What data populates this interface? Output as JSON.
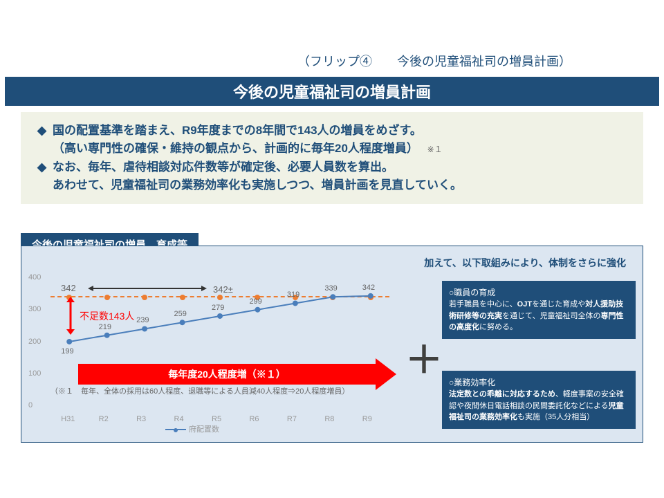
{
  "flip": "（フリップ④　　今後の児童福祉司の増員計画）",
  "title": "今後の児童福祉司の増員計画",
  "summary": {
    "l1": "国の配置基準を踏まえ、R9年度までの8年間で143人の増員をめざす。",
    "l2": "（高い専門性の確保・維持の観点から、計画的に毎年20人程度増員）",
    "l2note": "※１",
    "l3": "なお、毎年、虐待相談対応件数等が確定後、必要人員数を算出。",
    "l4": "あわせて、児童福祉司の業務効率化も実施しつつ、増員計画を見直していく。"
  },
  "section": "今後の児童福祉司の増員、育成等",
  "panelSub": "加えて、以下取組みにより、体制をさらに強化",
  "chart": {
    "target_line_value": 342,
    "top_left_label": "342",
    "top_right_label": "342±",
    "y": {
      "max": 400,
      "ticks": [
        0,
        100,
        200,
        300,
        400
      ]
    },
    "x_labels": [
      "H31",
      "R2",
      "R3",
      "R4",
      "R5",
      "R6",
      "R7",
      "R8",
      "R9"
    ],
    "values": [
      199,
      219,
      239,
      259,
      279,
      299,
      319,
      339,
      342
    ],
    "shortage": "不足数143人",
    "red_arrow": "毎年度20人程度増（※１）",
    "footnote": "（※１　毎年、全体の採用は60人程度、退職等による人員減40人程度⇒20人程度増員）",
    "legend": "府配置数"
  },
  "side1": {
    "hd": "○職員の育成",
    "body": "若手職員を中心に、OJTを通じた育成や対人援助技術研修等の充実を通じて、児童福祉司全体の専門性の高度化に努める。"
  },
  "side2": {
    "hd": "○業務効率化",
    "body": "法定数との乖離に対応するため、軽度事案の安全確認や夜間休日電話相談の民間委託化などによる児童福祉司の業務効率化も実施（35人分相当）"
  }
}
